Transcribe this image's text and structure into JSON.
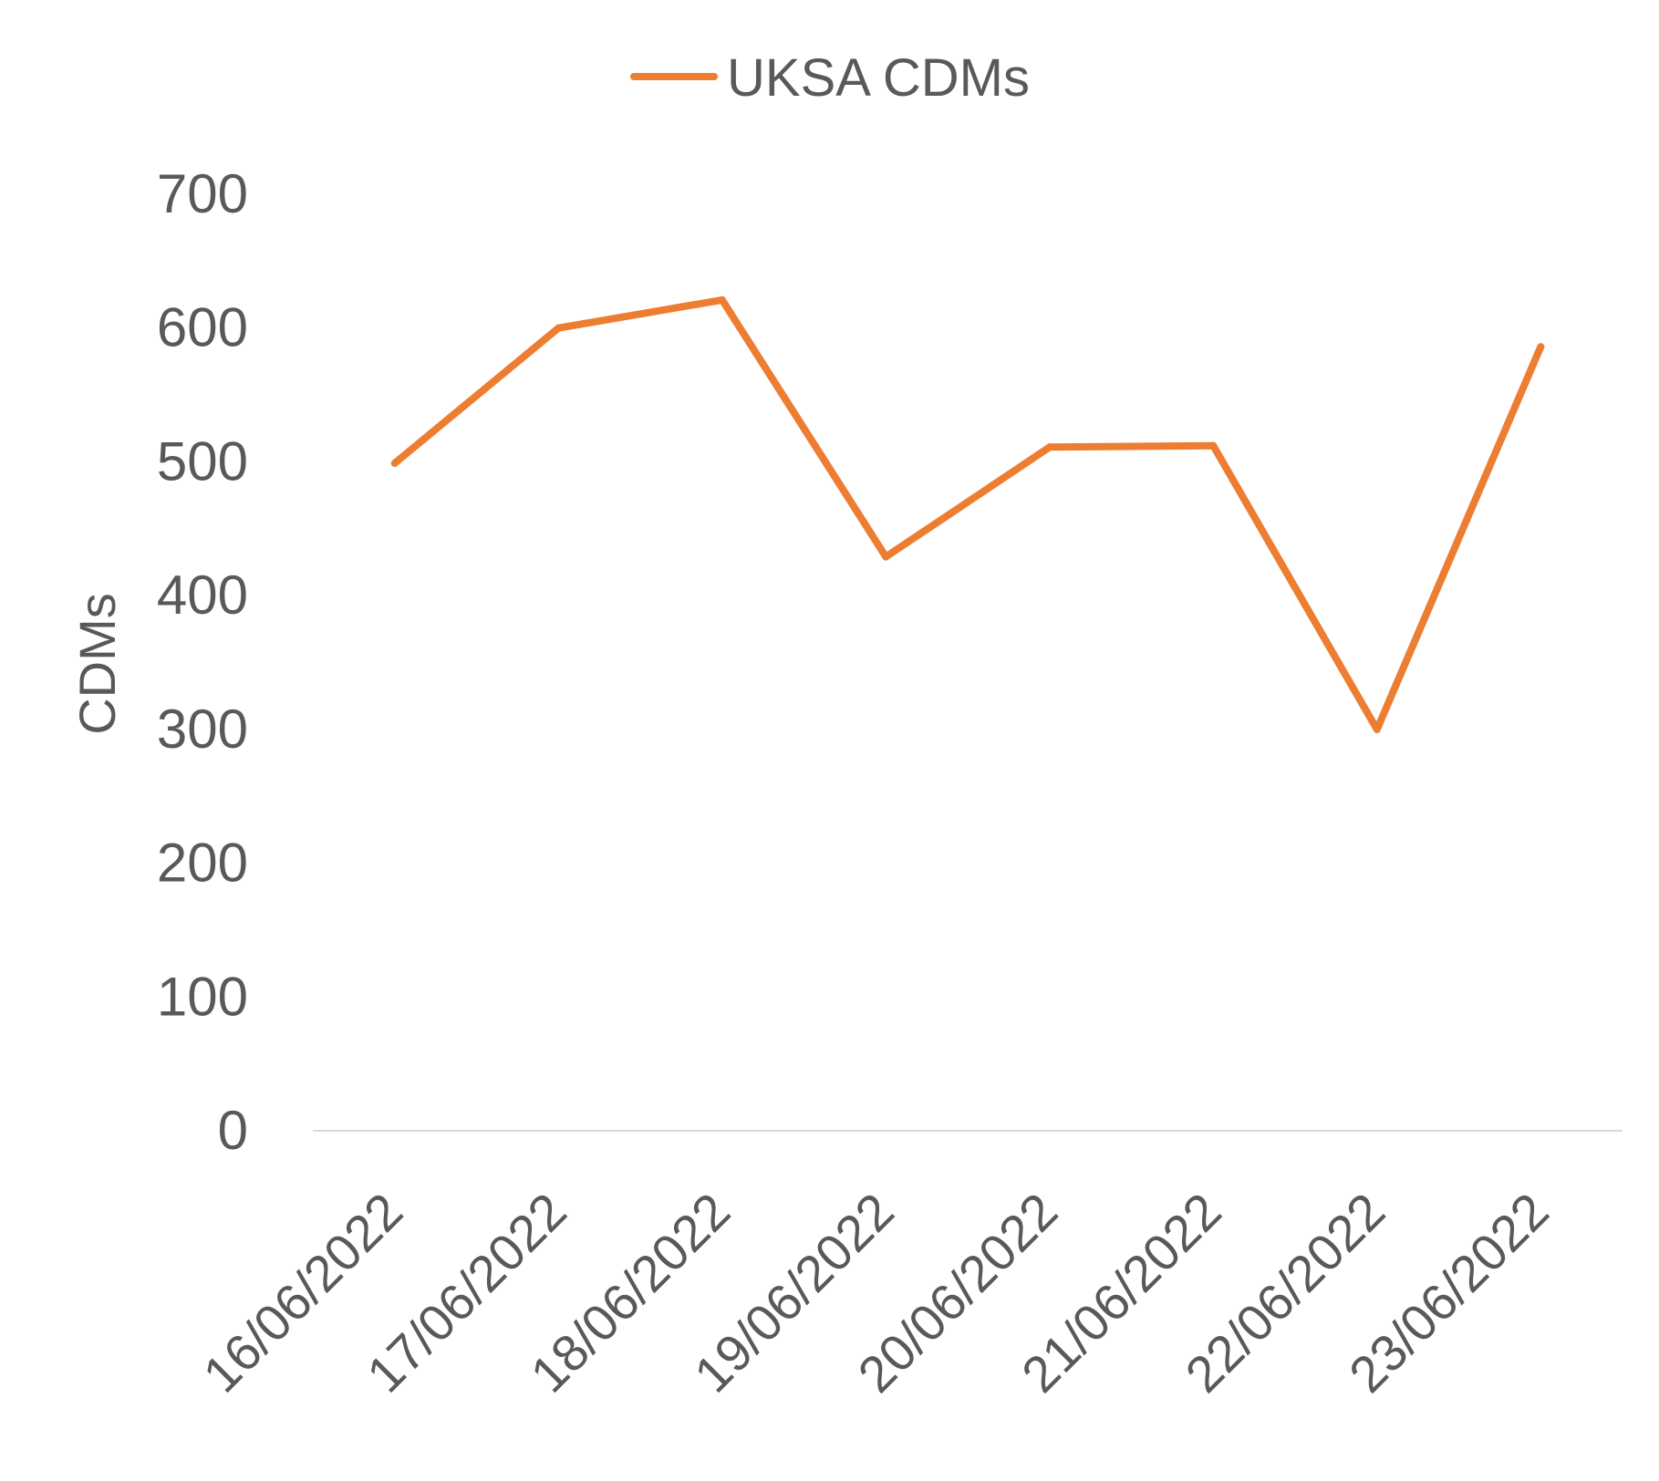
{
  "chart_data": {
    "type": "line",
    "categories": [
      "16/06/2022",
      "17/06/2022",
      "18/06/2022",
      "19/06/2022",
      "20/06/2022",
      "21/06/2022",
      "22/06/2022",
      "23/06/2022"
    ],
    "series": [
      {
        "name": "UKSA CDMs",
        "values": [
          499,
          600,
          621,
          429,
          511,
          512,
          300,
          586
        ]
      }
    ],
    "xlabel": "",
    "ylabel": "CDMs",
    "ylim": [
      0,
      700
    ],
    "yticks": [
      0,
      100,
      200,
      300,
      400,
      500,
      600,
      700
    ],
    "grid": false,
    "legend": "top-center",
    "colors": {
      "series": "#ED7D31",
      "axis": "#D9D9D9",
      "text": "#595959"
    }
  }
}
